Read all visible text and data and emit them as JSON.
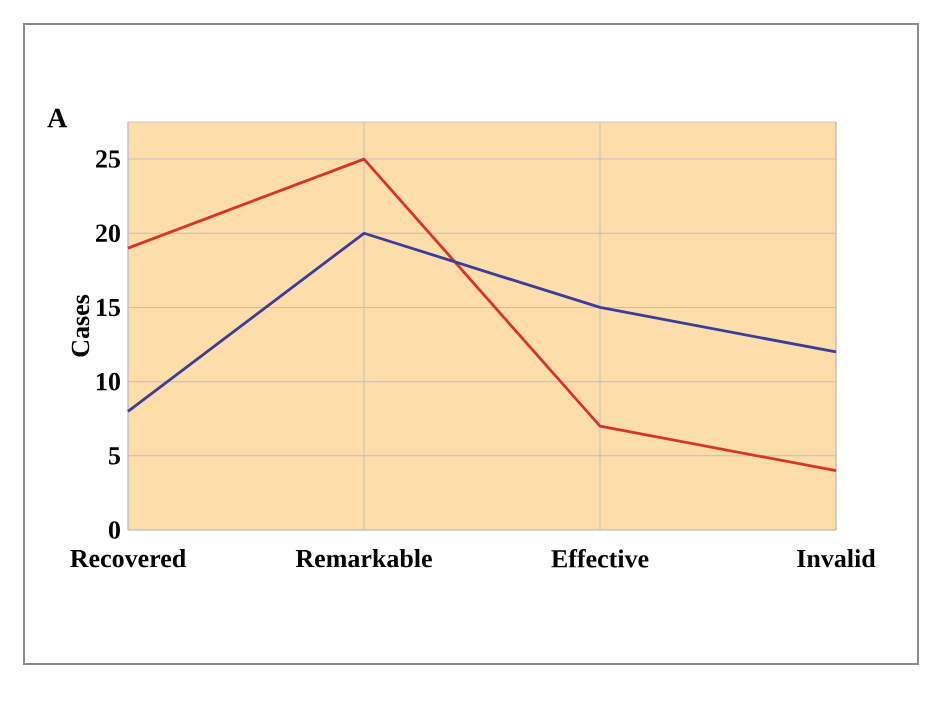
{
  "chart_data": {
    "type": "line",
    "title": "A",
    "ylabel": "Cases",
    "categories": [
      "Recovered",
      "Remarkable",
      "Effective",
      "Invalid"
    ],
    "series": [
      {
        "color": "#d9342b",
        "values": [
          19,
          25,
          7,
          4
        ]
      },
      {
        "color": "#3b3c9c",
        "values": [
          8,
          20,
          15,
          12
        ]
      }
    ],
    "ylim": [
      0,
      27.5
    ],
    "yticks": [
      0,
      5,
      10,
      15,
      20,
      25
    ],
    "grid": true,
    "marker": "none",
    "line_style": "solid"
  }
}
